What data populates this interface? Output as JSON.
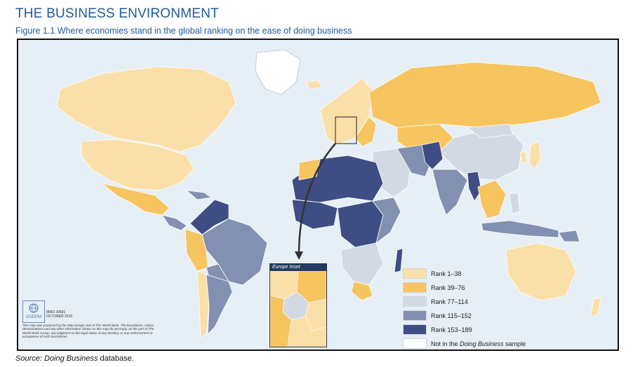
{
  "header": {
    "section_title": "THE BUSINESS ENVIRONMENT",
    "figure_caption": "Figure 1.1 Where economies stand in the global ranking on the ease of doing business"
  },
  "legend": {
    "items": [
      {
        "label": "Rank 1–38",
        "color": "#fbdfa8"
      },
      {
        "label": "Rank 39–76",
        "color": "#f6c560"
      },
      {
        "label": "Rank 77–114",
        "color": "#d3d9e3"
      },
      {
        "label": "Rank 115–152",
        "color": "#8290b1"
      },
      {
        "label": "Rank 153–189",
        "color": "#3e4d84"
      },
      {
        "label_prefix": "Not in the ",
        "label_italic": "Doing Business",
        "label_suffix": " sample",
        "color": "#ffffff"
      }
    ]
  },
  "inset": {
    "title": "Europe Inset"
  },
  "credit": {
    "logo_text": "GSDPM",
    "logo_sub": "Map Design Unit",
    "ibrd_line1": "IBRD 39581",
    "ibrd_line2": "OCTOBER 2015",
    "disclaimer": "This map was produced by the Map Design Unit of The World Bank. The boundaries, colors, denominations and any other information shown on this map do not imply, on the part of The World Bank Group, any judgment on the legal status of any territory, or any endorsement or acceptance of such boundaries."
  },
  "source": {
    "prefix": "Source: ",
    "italic": "Doing Business",
    "suffix": " database."
  },
  "colors": {
    "rank_1_38": "#fbdfa8",
    "rank_39_76": "#f6c560",
    "rank_77_114": "#d3d9e3",
    "rank_115_152": "#8290b1",
    "rank_153_189": "#3e4d84",
    "not_in_sample": "#ffffff",
    "ocean": "#e6eef6",
    "title_blue": "#1f5a9a"
  }
}
